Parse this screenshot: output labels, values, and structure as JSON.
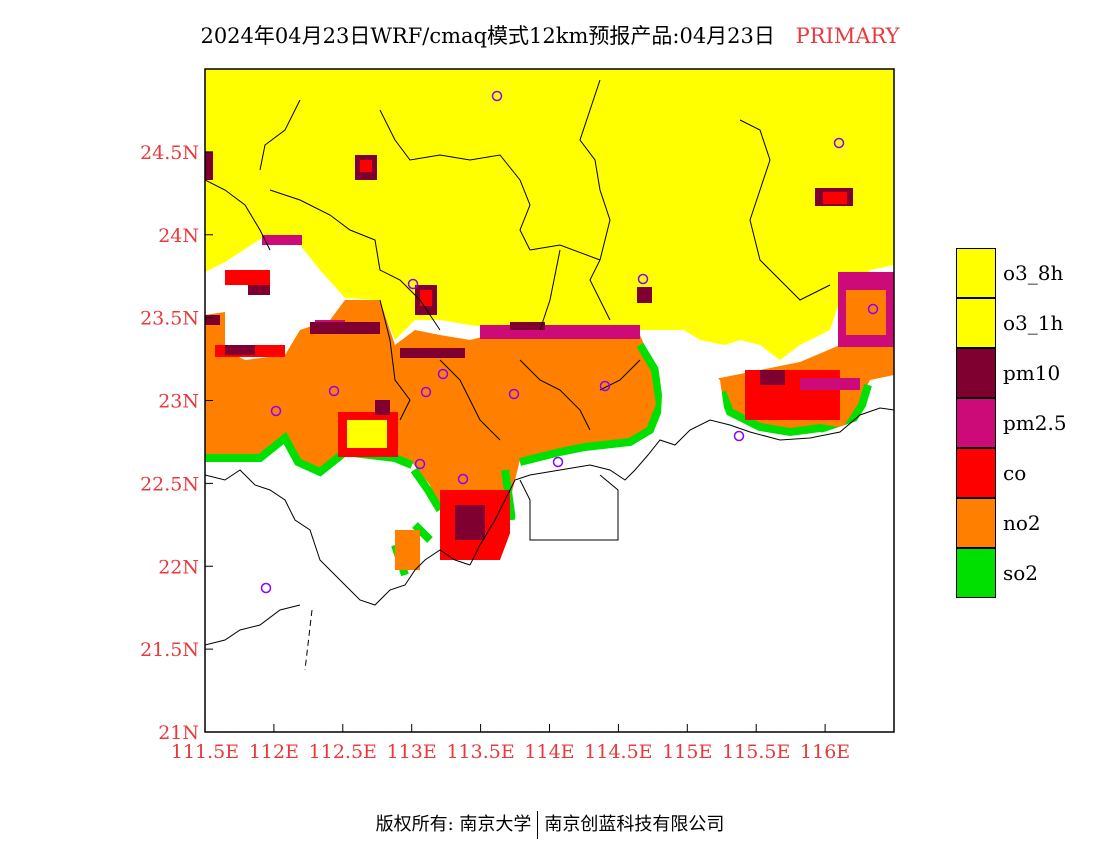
{
  "title": {
    "main": "2024年04月23日WRF/cmaq模式12km预报产品:04月23日",
    "tag": "PRIMARY"
  },
  "axes": {
    "x_ticks": [
      "111.5E",
      "112E",
      "112.5E",
      "113E",
      "113.5E",
      "114E",
      "114.5E",
      "115E",
      "115.5E",
      "116E"
    ],
    "y_ticks": [
      "24.5N",
      "24N",
      "23.5N",
      "23N",
      "22.5N",
      "22N",
      "21.5N",
      "21N"
    ],
    "tick_color": "#e8393c"
  },
  "map": {
    "lon_range": [
      111.5,
      116.5
    ],
    "lat_range": [
      21.0,
      25.0
    ]
  },
  "legend": [
    {
      "label": "o3_8h",
      "color": "#ffff00"
    },
    {
      "label": "o3_1h",
      "color": "#ffff00"
    },
    {
      "label": "pm10",
      "color": "#7f0030"
    },
    {
      "label": "pm2.5",
      "color": "#cc0a78"
    },
    {
      "label": "co",
      "color": "#ff0000"
    },
    {
      "label": "no2",
      "color": "#ff8000"
    },
    {
      "label": "so2",
      "color": "#00e000"
    }
  ],
  "footer": {
    "left": "版权所有: 南京大学",
    "right": "南京创蓝科技有限公司"
  }
}
